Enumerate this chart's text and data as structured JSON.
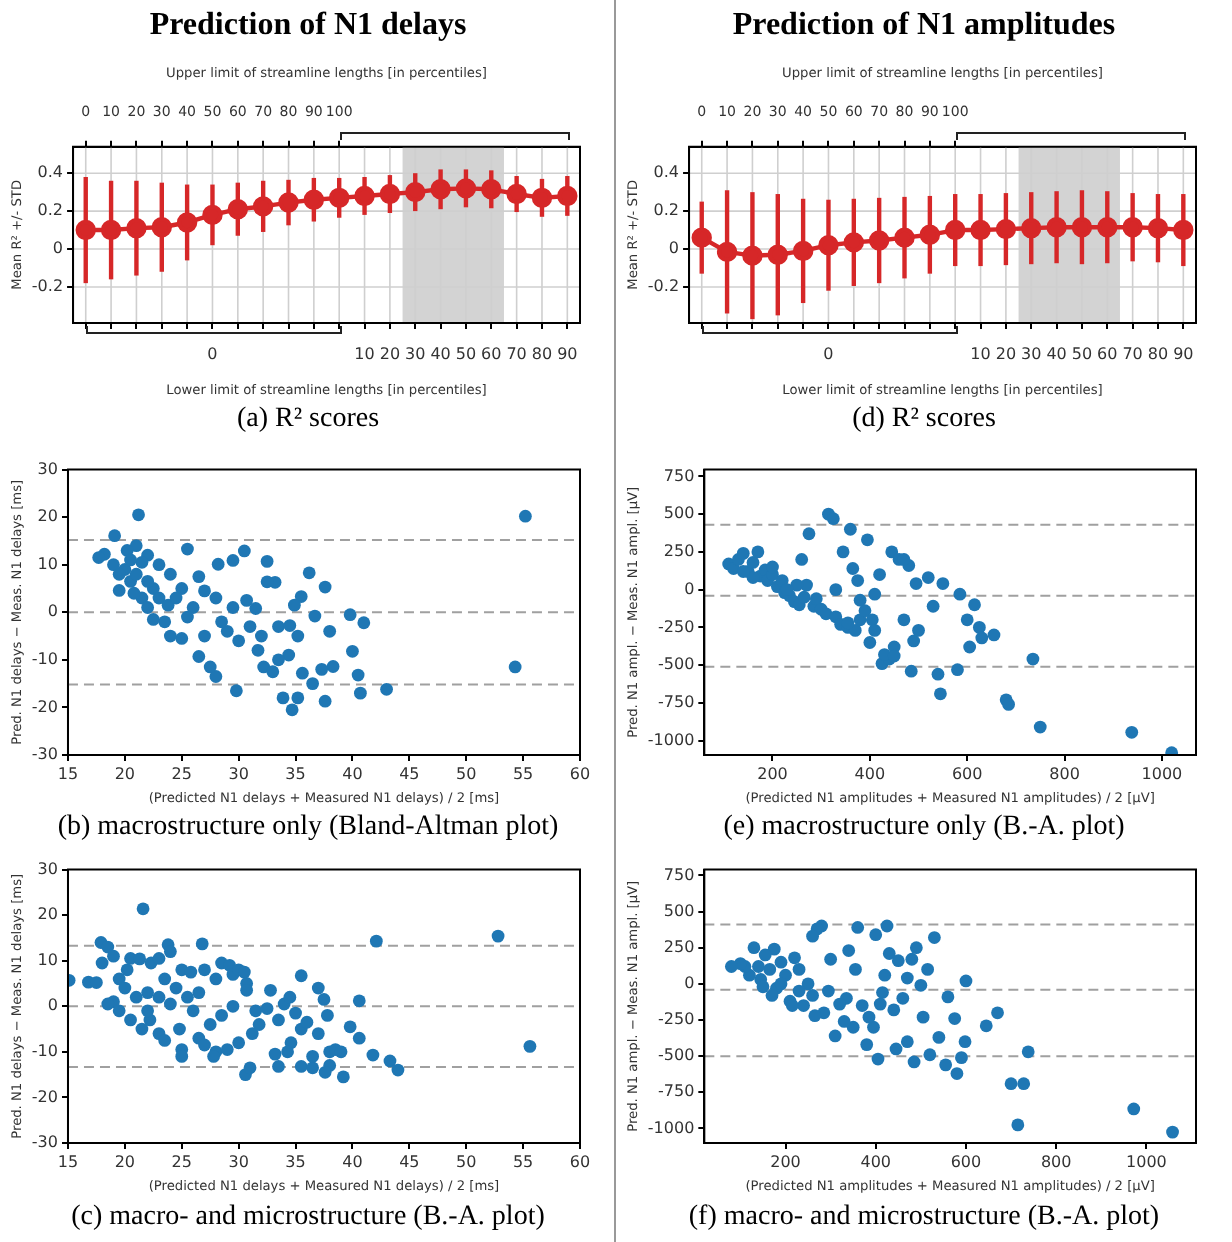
{
  "chart_data": [
    {
      "type": "line",
      "title": "Prediction of N1 delays",
      "xlabel": "Lower limit of streamline lengths [in percentiles]",
      "x2label": "Upper limit of streamline lengths [in percentiles]",
      "ylabel": "Mean R² +/- STD",
      "annotations": [
        "(a) R² scores"
      ],
      "categories": [
        null,
        null,
        null,
        null,
        null,
        "0",
        null,
        null,
        null,
        null,
        null,
        "10",
        "20",
        "30",
        "40",
        "50",
        "60",
        "70",
        "80",
        "90"
      ],
      "x2lim": [
        -5,
        195
      ],
      "x2ticks": [
        0,
        10,
        20,
        30,
        40,
        50,
        60,
        70,
        80,
        90,
        100
      ],
      "ylim": [
        -0.39,
        0.54
      ],
      "yticks": [
        -0.2,
        0,
        0.2,
        0.4
      ],
      "grid": true,
      "marker": "circle",
      "bands": [
        {
          "axis": "x",
          "from": "30",
          "to": "60",
          "color": "#d3d3d3"
        }
      ],
      "series": [
        {
          "color": "#d62728",
          "values": [
            0.1,
            0.1,
            0.11,
            0.115,
            0.14,
            0.18,
            0.21,
            0.225,
            0.245,
            0.26,
            0.27,
            0.28,
            0.29,
            0.3,
            0.315,
            0.32,
            0.315,
            0.29,
            0.27,
            0.28
          ],
          "errors": [
            0.28,
            0.26,
            0.25,
            0.235,
            0.2,
            0.16,
            0.14,
            0.135,
            0.12,
            0.115,
            0.105,
            0.1,
            0.1,
            0.1,
            0.105,
            0.1,
            0.1,
            0.095,
            0.1,
            0.105
          ]
        }
      ]
    },
    {
      "type": "line",
      "title": "Prediction of N1 amplitudes",
      "xlabel": "Lower limit of streamline lengths [in percentiles]",
      "x2label": "Upper limit of streamline lengths [in percentiles]",
      "ylabel": "Mean R² +/- STD",
      "annotations": [
        "(d) R² scores"
      ],
      "categories": [
        null,
        null,
        null,
        null,
        null,
        "0",
        null,
        null,
        null,
        null,
        null,
        "10",
        "20",
        "30",
        "40",
        "50",
        "60",
        "70",
        "80",
        "90"
      ],
      "x2lim": [
        -5,
        195
      ],
      "x2ticks": [
        0,
        10,
        20,
        30,
        40,
        50,
        60,
        70,
        80,
        90,
        100
      ],
      "ylim": [
        -0.39,
        0.54
      ],
      "yticks": [
        -0.2,
        0,
        0.2,
        0.4
      ],
      "grid": true,
      "marker": "circle",
      "bands": [
        {
          "axis": "x",
          "from": "30",
          "to": "60",
          "color": "#d3d3d3"
        }
      ],
      "series": [
        {
          "color": "#d62728",
          "values": [
            0.06,
            -0.015,
            -0.035,
            -0.03,
            -0.01,
            0.02,
            0.035,
            0.045,
            0.06,
            0.075,
            0.1,
            0.1,
            0.105,
            0.11,
            0.115,
            0.115,
            0.115,
            0.115,
            0.11,
            0.1
          ],
          "errors": [
            0.19,
            0.325,
            0.335,
            0.32,
            0.275,
            0.24,
            0.23,
            0.225,
            0.215,
            0.205,
            0.19,
            0.19,
            0.19,
            0.19,
            0.19,
            0.195,
            0.19,
            0.18,
            0.18,
            0.19
          ]
        }
      ]
    },
    {
      "type": "scatter",
      "xlabel": "(Predicted N1 delays + Measured N1 delays) / 2 [ms]",
      "ylabel": "Pred. N1 delays − Meas. N1 delays [ms]",
      "annotations": [
        "(b) macrostructure only (Bland-Altman plot)"
      ],
      "xlim": [
        15,
        60
      ],
      "xticks": [
        15,
        20,
        25,
        30,
        35,
        40,
        45,
        50,
        55,
        60
      ],
      "ylim": [
        -30,
        30
      ],
      "yticks": [
        -30,
        -20,
        -10,
        0,
        10,
        20,
        30
      ],
      "marker": "circle",
      "ref_lines": [
        {
          "axis": "y",
          "value": 15.2,
          "color": "#a0a0a0",
          "line_style": "dashed"
        },
        {
          "axis": "y",
          "value": 0,
          "color": "#a0a0a0",
          "line_style": "dashed"
        },
        {
          "axis": "y",
          "value": -15.2,
          "color": "#a0a0a0",
          "line_style": "dashed"
        }
      ],
      "x": [
        55.2,
        54.3,
        21.2,
        19.1,
        29.8,
        34.7,
        37.6,
        35.2,
        33.9,
        40.7,
        43,
        36.5,
        41,
        39.8,
        37.6,
        36.2,
        35.5,
        34.9,
        33.2,
        32.5,
        32.5,
        30.5,
        29.5,
        28.2,
        25.5,
        40,
        40.5,
        38,
        38.3,
        37.3,
        35.6,
        34.4,
        35.2,
        33.5,
        32.2,
        31.7,
        31,
        30.7,
        32,
        33.5,
        30,
        29,
        28,
        27.5,
        26.5,
        27,
        28.5,
        29.5,
        27,
        28,
        26,
        25,
        24,
        23.5,
        25.5,
        26.5,
        25,
        24,
        23,
        22,
        21,
        20.2,
        20,
        19.5,
        18.2,
        17.7,
        19,
        20.5,
        21.5,
        22.5,
        21,
        22,
        23,
        22.5,
        23.8,
        24.5,
        22,
        21.5,
        20.5,
        19.5,
        20.8,
        36.7,
        34.5,
        31.5,
        33
      ],
      "values": [
        20.2,
        -11.5,
        20.5,
        16.1,
        -16.5,
        -20.5,
        -18.7,
        -18,
        -18,
        -17,
        -16.2,
        -15,
        -2.2,
        -0.5,
        5.3,
        8.3,
        3.3,
        1.5,
        6.3,
        6.4,
        10.7,
        12.9,
        10.9,
        10.1,
        13.3,
        -8.2,
        -13.2,
        -4,
        -11.4,
        -12,
        -12.8,
        -9,
        -5,
        -10,
        -11.5,
        -8,
        -3,
        2.5,
        -5,
        -3,
        -6,
        -4,
        -13.5,
        -11.5,
        -9.3,
        -5,
        -2,
        1,
        4.5,
        3,
        1,
        -5.5,
        -5,
        -2,
        -1,
        7.5,
        5,
        8,
        10,
        12,
        14,
        13,
        9,
        4.6,
        12.2,
        11.5,
        10,
        6.5,
        3,
        5,
        8,
        1,
        3,
        -1.5,
        1.5,
        3,
        6.5,
        10.5,
        11,
        8,
        4,
        -0.8,
        -2.8,
        0.8,
        -12.5
      ],
      "color": "#1f77b4"
    },
    {
      "type": "scatter",
      "xlabel": "(Predicted N1 amplitudes + Measured N1 amplitudes) / 2 [μV]",
      "ylabel": "Pred. N1 ampl. − Meas. N1 ampl. [μV]",
      "annotations": [
        "(e) macrostructure only (B.-A. plot)"
      ],
      "xlim": [
        60,
        1070
      ],
      "xticks": [
        200,
        400,
        600,
        800,
        1000
      ],
      "ylim": [
        -1095,
        795
      ],
      "yticks": [
        -1000,
        -750,
        -500,
        -250,
        0,
        250,
        500,
        750
      ],
      "marker": "circle",
      "ref_lines": [
        {
          "axis": "y",
          "value": 430,
          "color": "#a0a0a0",
          "line_style": "dashed"
        },
        {
          "axis": "y",
          "value": -40,
          "color": "#a0a0a0",
          "line_style": "dashed"
        },
        {
          "axis": "y",
          "value": -510,
          "color": "#a0a0a0",
          "line_style": "dashed"
        }
      ],
      "x": [
        110,
        120,
        130,
        140,
        150,
        160,
        170,
        175,
        185,
        190,
        200,
        210,
        220,
        225,
        235,
        245,
        255,
        260,
        265,
        275,
        270,
        285,
        290,
        300,
        310,
        315,
        325,
        330,
        340,
        345,
        355,
        360,
        365,
        370,
        375,
        380,
        390,
        395,
        400,
        405,
        410,
        420,
        425,
        440,
        445,
        450,
        460,
        470,
        480,
        485,
        490,
        495,
        500,
        520,
        530,
        540,
        545,
        550,
        580,
        585,
        600,
        605,
        615,
        625,
        630,
        655,
        680,
        685,
        735,
        750,
        938,
        1020,
        470,
        430,
        355,
        330,
        250,
        230,
        200,
        160,
        140,
        450,
        410,
        380
      ],
      "values": [
        170,
        140,
        200,
        240,
        120,
        180,
        250,
        90,
        130,
        60,
        100,
        20,
        60,
        -20,
        -40,
        -80,
        -100,
        200,
        -50,
        370,
        30,
        -110,
        -60,
        -130,
        -160,
        500,
        470,
        -180,
        -230,
        250,
        -250,
        400,
        140,
        -270,
        60,
        -200,
        -140,
        330,
        -350,
        -200,
        -270,
        100,
        -490,
        -460,
        250,
        -380,
        200,
        -200,
        160,
        -540,
        -340,
        40,
        -270,
        80,
        -110,
        -560,
        -690,
        40,
        -530,
        -30,
        -200,
        -380,
        -100,
        -250,
        -320,
        -300,
        -730,
        -760,
        -460,
        -910,
        -945,
        -1080,
        200,
        -430,
        -220,
        0,
        30,
        0,
        150,
        80,
        120,
        -440,
        -30,
        -70
      ],
      "color": "#1f77b4"
    },
    {
      "type": "scatter",
      "xlabel": "(Predicted N1 delays + Measured N1 delays) / 2 [ms]",
      "ylabel": "Pred. N1 delays − Meas. N1 delays [ms]",
      "annotations": [
        "(c) macro- and microstructure (B.-A. plot)"
      ],
      "xlim": [
        15,
        60
      ],
      "xticks": [
        15,
        20,
        25,
        30,
        35,
        40,
        45,
        50,
        55,
        60
      ],
      "ylim": [
        -30,
        30
      ],
      "yticks": [
        -30,
        -20,
        -10,
        0,
        10,
        20,
        30
      ],
      "marker": "circle",
      "ref_lines": [
        {
          "axis": "y",
          "value": 13.3,
          "color": "#a0a0a0",
          "line_style": "dashed"
        },
        {
          "axis": "y",
          "value": 0,
          "color": "#a0a0a0",
          "line_style": "dashed"
        },
        {
          "axis": "y",
          "value": -13.3,
          "color": "#a0a0a0",
          "line_style": "dashed"
        }
      ],
      "x": [
        21.6,
        52.8,
        42.1,
        55.6,
        26.8,
        23.8,
        17.9,
        18.5,
        19,
        16.8,
        15.1,
        17.5,
        18,
        19.5,
        20.2,
        20.5,
        21.3,
        22.3,
        23,
        24,
        25,
        25.8,
        24.5,
        23.5,
        22,
        21,
        20,
        19,
        18.5,
        19.5,
        20.5,
        21.5,
        22.2,
        23,
        23.5,
        24.8,
        25,
        25,
        26,
        26.5,
        27,
        28,
        28.5,
        29.2,
        29.5,
        30,
        30.5,
        30.7,
        30.7,
        29.5,
        28.5,
        27.5,
        26.5,
        27,
        28,
        27.8,
        29,
        30,
        30.6,
        31,
        31.2,
        31.8,
        31.5,
        32.5,
        32.8,
        33.5,
        34,
        34.5,
        35.5,
        35,
        35.5,
        34.6,
        34.3,
        33.2,
        33.5,
        35.5,
        36.5,
        36.5,
        37,
        37,
        37.5,
        37.8,
        38,
        38.5,
        39,
        39.2,
        38,
        37.6,
        39.8,
        40.6,
        40.6,
        41.8,
        43.3,
        44,
        36,
        24,
        23,
        22,
        25.5
      ],
      "values": [
        21.4,
        15.4,
        14.3,
        -8.8,
        13.7,
        13.5,
        14,
        13,
        11,
        5.3,
        5.7,
        5.2,
        9.5,
        6,
        8,
        10.5,
        10.4,
        9.5,
        10.5,
        12,
        8,
        7.5,
        4,
        6,
        3,
        2,
        4,
        1,
        0.5,
        -1,
        -3,
        -5,
        -3,
        -6,
        -7.5,
        -5,
        -9.5,
        -11,
        -1,
        3,
        8,
        6,
        9.5,
        9,
        7,
        8,
        7.5,
        5,
        3.5,
        0,
        -2,
        -4,
        -7,
        -8.5,
        -10,
        -11,
        -9.5,
        -8,
        -15,
        -13.5,
        -6,
        -4,
        -1,
        -0.5,
        3.5,
        -3,
        0.5,
        2,
        6.7,
        -1.5,
        -5,
        -8,
        -10,
        -10.5,
        -13.2,
        -13.2,
        -13.5,
        -11,
        -6,
        4,
        1.5,
        -2,
        -10,
        -9.5,
        -10,
        -15.5,
        -13,
        -14.5,
        -4.5,
        1.2,
        -7,
        -10.7,
        -12,
        -14,
        -3.5,
        0.5,
        2,
        -1,
        2
      ],
      "color": "#1f77b4"
    },
    {
      "type": "scatter",
      "xlabel": "(Predicted N1 amplitudes + Measured N1 amplitudes) / 2 [μV]",
      "ylabel": "Pred. N1 ampl. − Meas. N1 ampl. [μV]",
      "annotations": [
        "(f) macro- and microstructure (B.-A. plot)"
      ],
      "xlim": [
        20,
        1110
      ],
      "xticks": [
        200,
        400,
        600,
        800,
        1000
      ],
      "ylim": [
        -1100,
        790
      ],
      "yticks": [
        -1000,
        -750,
        -500,
        -250,
        0,
        250,
        500,
        750
      ],
      "marker": "circle",
      "ref_lines": [
        {
          "axis": "y",
          "value": 410,
          "color": "#a0a0a0",
          "line_style": "dashed"
        },
        {
          "axis": "y",
          "value": -40,
          "color": "#a0a0a0",
          "line_style": "dashed"
        },
        {
          "axis": "y",
          "value": -500,
          "color": "#a0a0a0",
          "line_style": "dashed"
        }
      ],
      "x": [
        972,
        1058,
        715,
        700,
        728,
        738,
        670,
        645,
        600,
        598,
        590,
        580,
        575,
        555,
        560,
        530,
        515,
        500,
        505,
        490,
        480,
        485,
        470,
        460,
        440,
        445,
        425,
        430,
        420,
        410,
        405,
        400,
        395,
        385,
        380,
        370,
        360,
        355,
        350,
        340,
        335,
        330,
        320,
        310,
        300,
        295,
        285,
        280,
        270,
        260,
        265,
        260,
        250,
        240,
        230,
        220,
        210,
        200,
        190,
        180,
        175,
        165,
        155,
        145,
        140,
        130,
        120,
        110,
        100,
        80,
        150,
        170,
        190,
        215,
        230,
        520,
        540,
        450,
        470,
        415
      ],
      "values": [
        -865,
        -1025,
        -975,
        -690,
        -690,
        -470,
        -200,
        -290,
        20,
        -400,
        -510,
        -620,
        -240,
        -560,
        -90,
        320,
        100,
        -10,
        -230,
        250,
        170,
        -540,
        -400,
        -100,
        -180,
        -450,
        400,
        210,
        60,
        -140,
        -520,
        340,
        -300,
        -230,
        -420,
        -150,
        390,
        100,
        -300,
        230,
        -100,
        -260,
        -140,
        -360,
        170,
        -50,
        -200,
        400,
        380,
        330,
        -220,
        -80,
        0,
        -150,
        100,
        180,
        -120,
        60,
        150,
        -30,
        240,
        100,
        200,
        30,
        120,
        250,
        60,
        120,
        140,
        120,
        -20,
        -80,
        0,
        -150,
        -50,
        -490,
        -370,
        160,
        40,
        -60
      ],
      "color": "#1f77b4"
    }
  ]
}
